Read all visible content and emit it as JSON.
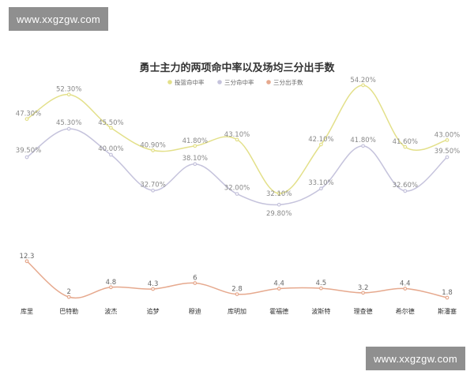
{
  "watermark": {
    "top": "www.xxgzgw.com",
    "bottom": "www.xxgzgw.com"
  },
  "chart_data": {
    "type": "line",
    "title": "勇士主力的两项命中率以及场均三分出手数",
    "legend_position": "top-center",
    "grid": false,
    "categories": [
      "库里",
      "巴特勒",
      "波杰",
      "追梦",
      "穆迪",
      "库明加",
      "霍福德",
      "波斯特",
      "理查德",
      "希尔德",
      "斯潘塞"
    ],
    "series": [
      {
        "name": "投篮命中率",
        "color": "#e3e08a",
        "values": [
          47.3,
          52.3,
          45.5,
          40.9,
          41.8,
          43.1,
          32.1,
          42.1,
          54.2,
          41.6,
          43.0
        ],
        "labels": [
          "47.30%",
          "52.30%",
          "45.50%",
          "40.90%",
          "41.80%",
          "43.10%",
          "32.10%",
          "42.10%",
          "54.20%",
          "41.60%",
          "43.00%"
        ]
      },
      {
        "name": "三分命中率",
        "color": "#c5c3dc",
        "values": [
          39.5,
          45.3,
          40.0,
          32.7,
          38.1,
          32.0,
          29.8,
          33.1,
          41.8,
          32.6,
          39.5
        ],
        "labels": [
          "39.50%",
          "45.30%",
          "40.00%",
          "32.70%",
          "38.10%",
          "32.00%",
          "29.80%",
          "33.10%",
          "41.80%",
          "32.60%",
          "39.50%"
        ]
      },
      {
        "name": "三分出手数",
        "color": "#e6a98e",
        "values": [
          12.3,
          2,
          4.8,
          4.3,
          6,
          2.8,
          4.4,
          4.5,
          3.2,
          4.4,
          1.8
        ],
        "labels": [
          "12.3",
          "2",
          "4.8",
          "4.3",
          "6",
          "2.8",
          "4.4",
          "4.5",
          "3.2",
          "4.4",
          "1.8"
        ]
      }
    ]
  }
}
